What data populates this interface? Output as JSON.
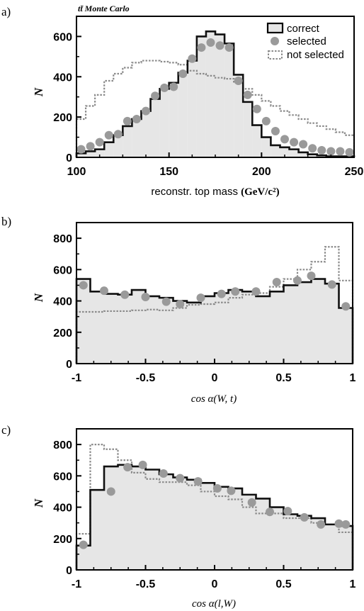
{
  "panels": [
    {
      "letter": "a)",
      "annotation": "tt̄ Monte Carlo",
      "ylabel": "N",
      "xlabel_main": "reconstr. top mass ",
      "xlabel_unit": "(GeV/c²)",
      "xlim": [
        100,
        250
      ],
      "ylim": [
        0,
        700
      ],
      "xticks": [
        "100",
        "150",
        "200",
        "250"
      ],
      "yticks": [
        "0",
        "200",
        "400",
        "600"
      ],
      "legend": {
        "correct": "correct",
        "selected": "selected",
        "not_selected": "not selected"
      }
    },
    {
      "letter": "b)",
      "ylabel": "N",
      "xlabel": "cos α(W, t)",
      "xlim": [
        -1,
        1
      ],
      "ylim": [
        0,
        900
      ],
      "xticks": [
        "-1",
        "-0.5",
        "0",
        "0.5",
        "1"
      ],
      "yticks": [
        "0",
        "200",
        "400",
        "600",
        "800"
      ]
    },
    {
      "letter": "c)",
      "ylabel": "N",
      "xlabel": "cos α(l,W)",
      "xlim": [
        -1,
        1
      ],
      "ylim": [
        0,
        900
      ],
      "xticks": [
        "-1",
        "-0.5",
        "0",
        "0.5",
        "1"
      ],
      "yticks": [
        "0",
        "200",
        "400",
        "600",
        "800"
      ]
    }
  ],
  "chart_data": [
    {
      "type": "histogram",
      "bin_edges": [
        100,
        105,
        110,
        115,
        120,
        125,
        130,
        135,
        140,
        145,
        150,
        155,
        160,
        165,
        170,
        175,
        180,
        185,
        190,
        195,
        200,
        205,
        210,
        215,
        220,
        225,
        230,
        235,
        240,
        245,
        250
      ],
      "series": [
        {
          "name": "correct",
          "style": "solid-filled",
          "values": [
            20,
            30,
            40,
            75,
            110,
            155,
            190,
            230,
            290,
            340,
            370,
            420,
            480,
            600,
            625,
            610,
            565,
            410,
            275,
            160,
            100,
            60,
            50,
            40,
            25,
            15,
            10,
            5,
            5,
            5
          ]
        },
        {
          "name": "not selected",
          "style": "dotted",
          "values": [
            190,
            255,
            310,
            380,
            415,
            445,
            470,
            480,
            480,
            475,
            470,
            460,
            430,
            415,
            405,
            395,
            390,
            370,
            340,
            310,
            280,
            255,
            230,
            210,
            190,
            170,
            155,
            140,
            125,
            110
          ]
        },
        {
          "name": "selected",
          "style": "markers",
          "x": [
            102.5,
            107.5,
            112.5,
            117.5,
            122.5,
            127.5,
            132.5,
            137.5,
            142.5,
            147.5,
            152.5,
            157.5,
            162.5,
            167.5,
            172.5,
            177.5,
            182.5,
            187.5,
            192.5,
            197.5,
            202.5,
            207.5,
            212.5,
            217.5,
            222.5,
            227.5,
            232.5,
            237.5,
            242.5,
            247.5
          ],
          "values": [
            40,
            55,
            75,
            110,
            115,
            180,
            190,
            230,
            305,
            345,
            350,
            415,
            490,
            545,
            570,
            555,
            545,
            380,
            310,
            240,
            180,
            130,
            90,
            75,
            65,
            45,
            35,
            30,
            30,
            25
          ]
        }
      ]
    },
    {
      "type": "histogram",
      "bin_edges": [
        -1,
        -0.9,
        -0.8,
        -0.7,
        -0.6,
        -0.5,
        -0.4,
        -0.3,
        -0.2,
        -0.1,
        0,
        0.1,
        0.2,
        0.3,
        0.4,
        0.5,
        0.6,
        0.7,
        0.8,
        0.9,
        1
      ],
      "series": [
        {
          "name": "correct",
          "style": "solid-filled",
          "values": [
            540,
            460,
            445,
            440,
            470,
            430,
            420,
            400,
            390,
            430,
            450,
            470,
            460,
            430,
            460,
            500,
            520,
            540,
            510,
            355
          ]
        },
        {
          "name": "not selected",
          "style": "dotted",
          "values": [
            330,
            330,
            335,
            335,
            340,
            345,
            340,
            355,
            375,
            380,
            390,
            420,
            440,
            450,
            490,
            540,
            600,
            650,
            745,
            530
          ]
        },
        {
          "name": "selected",
          "style": "markers",
          "x": [
            -0.95,
            -0.8,
            -0.65,
            -0.5,
            -0.35,
            -0.25,
            -0.1,
            0.05,
            0.15,
            0.3,
            0.45,
            0.6,
            0.7,
            0.85,
            0.95
          ],
          "values": [
            500,
            465,
            440,
            425,
            395,
            380,
            420,
            445,
            460,
            460,
            520,
            530,
            560,
            505,
            365
          ]
        }
      ]
    },
    {
      "type": "histogram",
      "bin_edges": [
        -1,
        -0.9,
        -0.8,
        -0.7,
        -0.6,
        -0.5,
        -0.4,
        -0.3,
        -0.2,
        -0.1,
        0,
        0.1,
        0.2,
        0.3,
        0.4,
        0.5,
        0.6,
        0.7,
        0.8,
        0.9,
        1
      ],
      "series": [
        {
          "name": "correct",
          "style": "solid-filled",
          "values": [
            155,
            510,
            660,
            670,
            660,
            640,
            610,
            590,
            575,
            555,
            530,
            520,
            480,
            455,
            400,
            355,
            345,
            330,
            290,
            280
          ]
        },
        {
          "name": "not selected",
          "style": "dotted",
          "values": [
            230,
            800,
            770,
            700,
            620,
            580,
            560,
            560,
            540,
            500,
            470,
            450,
            400,
            360,
            360,
            330,
            330,
            300,
            290,
            240
          ]
        },
        {
          "name": "selected",
          "style": "markers",
          "x": [
            -0.95,
            -0.75,
            -0.63,
            -0.52,
            -0.37,
            -0.25,
            -0.12,
            0.02,
            0.12,
            0.27,
            0.4,
            0.53,
            0.65,
            0.77,
            0.9,
            0.95
          ],
          "values": [
            160,
            500,
            655,
            670,
            615,
            585,
            565,
            520,
            505,
            430,
            370,
            375,
            335,
            290,
            295,
            290
          ]
        }
      ]
    }
  ]
}
